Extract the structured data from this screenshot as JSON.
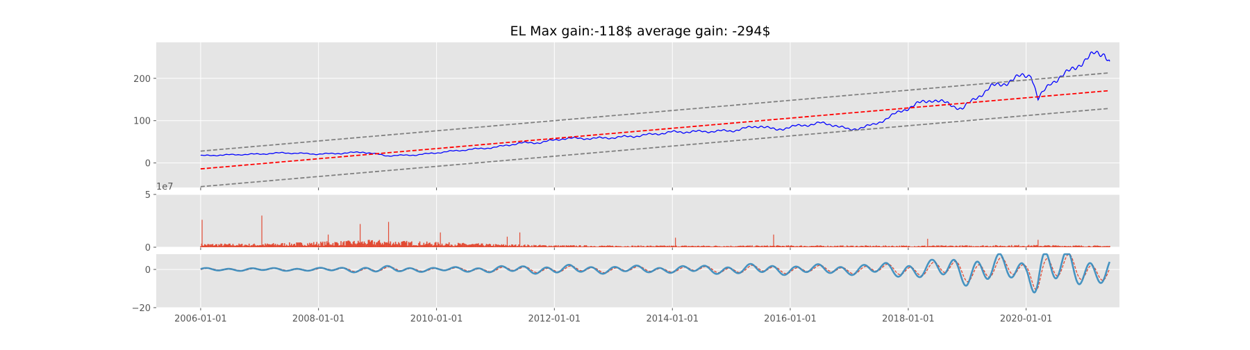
{
  "figure": {
    "title": "EL Max gain:-118$  average gain: -294$"
  },
  "chart_data": [
    {
      "type": "line",
      "panel": "price",
      "yticks": [
        "200",
        "100",
        "0"
      ],
      "ylim": [
        -58,
        285
      ],
      "xlim": [
        "2005-04-01",
        "2021-08-01"
      ],
      "grid": true,
      "background": "#e5e5e5",
      "series": [
        {
          "role": "price",
          "color": "#0000ff",
          "points": [
            [
              "2006-01-01",
              17
            ],
            [
              "2006-06-01",
              19
            ],
            [
              "2007-01-01",
              21
            ],
            [
              "2007-06-01",
              24
            ],
            [
              "2008-01-01",
              21
            ],
            [
              "2008-06-01",
              23
            ],
            [
              "2008-10-01",
              26
            ],
            [
              "2009-03-01",
              17
            ],
            [
              "2009-09-01",
              19
            ],
            [
              "2010-01-01",
              24
            ],
            [
              "2010-06-01",
              30
            ],
            [
              "2011-01-01",
              37
            ],
            [
              "2011-06-01",
              47
            ],
            [
              "2011-10-01",
              48
            ],
            [
              "2012-03-01",
              58
            ],
            [
              "2012-09-01",
              58
            ],
            [
              "2013-01-01",
              60
            ],
            [
              "2013-06-01",
              64
            ],
            [
              "2014-01-01",
              73
            ],
            [
              "2014-06-01",
              74
            ],
            [
              "2015-01-01",
              76
            ],
            [
              "2015-07-01",
              88
            ],
            [
              "2015-10-01",
              78
            ],
            [
              "2016-01-01",
              85
            ],
            [
              "2016-07-01",
              94
            ],
            [
              "2016-10-01",
              90
            ],
            [
              "2017-01-01",
              78
            ],
            [
              "2017-06-01",
              90
            ],
            [
              "2017-12-01",
              125
            ],
            [
              "2018-03-01",
              140
            ],
            [
              "2018-06-01",
              150
            ],
            [
              "2018-09-01",
              140
            ],
            [
              "2018-12-01",
              128
            ],
            [
              "2019-03-01",
              155
            ],
            [
              "2019-06-01",
              180
            ],
            [
              "2019-09-01",
              190
            ],
            [
              "2019-12-01",
              205
            ],
            [
              "2020-02-01",
              210
            ],
            [
              "2020-03-15",
              150
            ],
            [
              "2020-06-01",
              190
            ],
            [
              "2020-09-01",
              210
            ],
            [
              "2020-12-01",
              235
            ],
            [
              "2021-03-01",
              258
            ],
            [
              "2021-05-01",
              260
            ],
            [
              "2021-06-01",
              240
            ]
          ]
        },
        {
          "role": "trend",
          "style": "dashed",
          "color": "#ff0000",
          "points": [
            [
              "2006-01-01",
              -14
            ],
            [
              "2021-06-01",
              171
            ]
          ]
        },
        {
          "role": "upper-band",
          "style": "dashed",
          "color": "#808080",
          "points": [
            [
              "2006-01-01",
              28
            ],
            [
              "2021-06-01",
              213
            ]
          ]
        },
        {
          "role": "lower-band",
          "style": "dashed",
          "color": "#808080",
          "points": [
            [
              "2006-01-01",
              -56
            ],
            [
              "2021-06-01",
              129
            ]
          ]
        }
      ]
    },
    {
      "type": "area",
      "panel": "volume",
      "yticks": [
        "5",
        "0"
      ],
      "offset_label": "1e7",
      "ylim": [
        0,
        50000000
      ],
      "color": "#e24a33",
      "typical_level": [
        [
          "2006-01-01",
          2500000
        ],
        [
          "2007-01-01",
          2500000
        ],
        [
          "2008-01-01",
          3800000
        ],
        [
          "2009-01-01",
          5000000
        ],
        [
          "2010-01-01",
          3500000
        ],
        [
          "2011-01-01",
          2200000
        ],
        [
          "2012-01-01",
          1500000
        ],
        [
          "2013-01-01",
          1200000
        ],
        [
          "2014-01-01",
          1200000
        ],
        [
          "2015-01-01",
          1200000
        ],
        [
          "2016-01-01",
          1300000
        ],
        [
          "2017-01-01",
          1200000
        ],
        [
          "2018-01-01",
          1200000
        ],
        [
          "2019-01-01",
          1300000
        ],
        [
          "2020-01-01",
          1600000
        ],
        [
          "2021-06-01",
          1100000
        ]
      ],
      "spikes": [
        [
          "2006-01-10",
          26000000
        ],
        [
          "2007-01-15",
          30000000
        ],
        [
          "2008-03-01",
          12000000
        ],
        [
          "2008-09-15",
          22000000
        ],
        [
          "2009-03-10",
          24000000
        ],
        [
          "2010-01-25",
          14000000
        ],
        [
          "2011-03-15",
          10000000
        ],
        [
          "2011-06-01",
          14000000
        ],
        [
          "2014-01-20",
          9000000
        ],
        [
          "2015-09-20",
          12000000
        ],
        [
          "2018-05-01",
          8000000
        ],
        [
          "2020-03-15",
          7000000
        ]
      ]
    },
    {
      "type": "line",
      "panel": "oscillator",
      "yticks": [
        "0",
        "−20"
      ],
      "ylim": [
        -20,
        8
      ],
      "series": [
        {
          "role": "oscillator",
          "color": "#348abd"
        },
        {
          "role": "signal",
          "style": "dashed",
          "color": "#e24a33"
        }
      ],
      "amplitude_envelope": [
        [
          "2006-01-01",
          0.7
        ],
        [
          "2008-01-01",
          0.8
        ],
        [
          "2009-01-01",
          1.8
        ],
        [
          "2010-01-01",
          1.0
        ],
        [
          "2011-06-01",
          2.0
        ],
        [
          "2012-01-01",
          2.3
        ],
        [
          "2013-01-01",
          2.0
        ],
        [
          "2014-01-01",
          1.8
        ],
        [
          "2015-06-01",
          2.8
        ],
        [
          "2016-06-01",
          2.5
        ],
        [
          "2017-06-01",
          3.0
        ],
        [
          "2018-01-01",
          4.5
        ],
        [
          "2018-06-01",
          5.0
        ],
        [
          "2019-01-01",
          8.0
        ],
        [
          "2019-06-01",
          8.0
        ],
        [
          "2020-01-01",
          6.0
        ],
        [
          "2020-03-15",
          14.0
        ],
        [
          "2020-06-01",
          11.0
        ],
        [
          "2021-06-01",
          7.0
        ]
      ]
    }
  ],
  "x_axis": {
    "ticks": [
      "2006-01-01",
      "2008-01-01",
      "2010-01-01",
      "2012-01-01",
      "2014-01-01",
      "2016-01-01",
      "2018-01-01",
      "2020-01-01"
    ]
  }
}
